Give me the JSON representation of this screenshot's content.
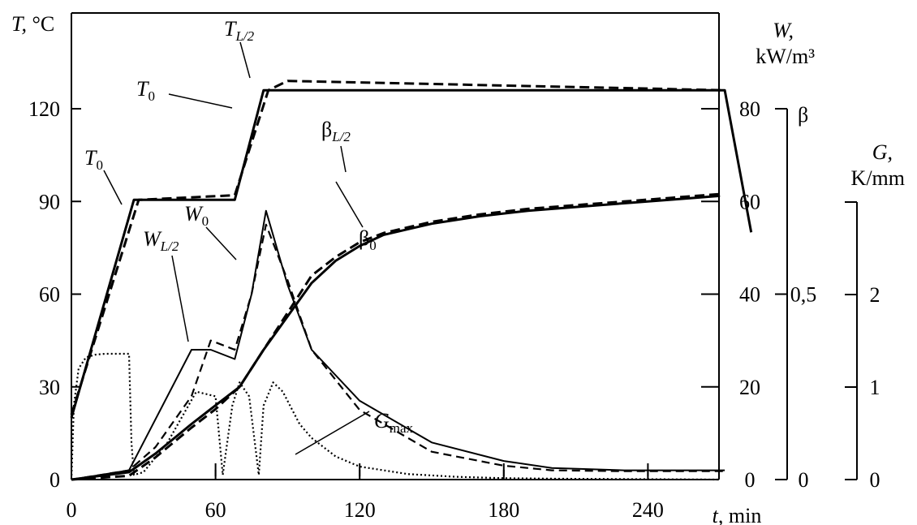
{
  "chart_data": {
    "type": "line",
    "grid": false,
    "x_axis": {
      "label_var": "t,",
      "label_unit": " min",
      "range": [
        0,
        270
      ],
      "ticks": [
        0,
        60,
        120,
        180,
        240
      ]
    },
    "left_axis": {
      "label_var": "T,",
      "label_unit": " °C",
      "range": [
        0,
        150
      ],
      "ticks": [
        0,
        30,
        60,
        90,
        120
      ]
    },
    "w_axis": {
      "label_var": "W,",
      "label_unit": "kW/m³",
      "range": [
        0,
        100
      ],
      "ticks": [
        0,
        20,
        40,
        60,
        80
      ]
    },
    "beta_axis": {
      "label": "β",
      "range": [
        0,
        1
      ],
      "ticks": [
        {
          "value": 0,
          "label": "0"
        },
        {
          "value": 0.5,
          "label": "0,5"
        }
      ]
    },
    "g_axis": {
      "label_var": "G,",
      "label_unit": "K/mm",
      "range": [
        0,
        3
      ],
      "ticks": [
        0,
        1,
        2
      ]
    },
    "series": [
      {
        "id": "T0",
        "axis": "T",
        "style": "solid-thick",
        "x": [
          0,
          26,
          68,
          80,
          272,
          283
        ],
        "y": [
          20,
          90.5,
          90.5,
          126,
          126,
          80
        ]
      },
      {
        "id": "TL2",
        "axis": "T",
        "style": "dashed-thick",
        "x": [
          0,
          28,
          68,
          82,
          90,
          272
        ],
        "y": [
          21,
          90.5,
          92,
          126,
          129,
          126
        ]
      },
      {
        "id": "W0",
        "axis": "W",
        "style": "solid-thin",
        "x": [
          0,
          24,
          50,
          58,
          68,
          75,
          81,
          90,
          100,
          120,
          150,
          180,
          200,
          230,
          272
        ],
        "y": [
          0,
          2,
          28,
          28,
          26,
          40,
          58,
          42,
          28,
          17,
          8,
          4,
          2.5,
          2,
          2
        ]
      },
      {
        "id": "WL2",
        "axis": "W",
        "style": "dashed-thin",
        "x": [
          0,
          24,
          35,
          50,
          58,
          68,
          75,
          81,
          90,
          100,
          120,
          150,
          180,
          200,
          230,
          272
        ],
        "y": [
          0,
          2,
          7,
          18,
          30,
          28,
          40,
          55,
          43,
          28,
          15,
          6,
          3,
          2,
          1.8,
          1.8
        ]
      },
      {
        "id": "beta0",
        "axis": "beta",
        "style": "solid-thick",
        "x": [
          0,
          24,
          35,
          50,
          60,
          70,
          80,
          90,
          100,
          110,
          120,
          130,
          150,
          170,
          190,
          210,
          230,
          250,
          270
        ],
        "y": [
          0,
          0.02,
          0.07,
          0.15,
          0.2,
          0.25,
          0.35,
          0.44,
          0.53,
          0.59,
          0.63,
          0.66,
          0.69,
          0.71,
          0.725,
          0.735,
          0.745,
          0.755,
          0.765
        ]
      },
      {
        "id": "betaL2",
        "axis": "beta",
        "style": "dashed-thick",
        "x": [
          0,
          24,
          35,
          50,
          60,
          70,
          80,
          90,
          100,
          110,
          120,
          130,
          150,
          170,
          190,
          210,
          230,
          250,
          270
        ],
        "y": [
          0,
          0.01,
          0.06,
          0.14,
          0.19,
          0.25,
          0.35,
          0.45,
          0.55,
          0.6,
          0.64,
          0.665,
          0.695,
          0.715,
          0.73,
          0.74,
          0.75,
          0.76,
          0.77
        ]
      },
      {
        "id": "Gmax",
        "axis": "G",
        "style": "dotted",
        "x": [
          0,
          1,
          3,
          6,
          10,
          14,
          20,
          24,
          25,
          26,
          30,
          40,
          52,
          60,
          63,
          67,
          70,
          74,
          78,
          80,
          84,
          88,
          92,
          95,
          100,
          110,
          120,
          140,
          160,
          180,
          200,
          230,
          270
        ],
        "y": [
          0,
          0.8,
          1.2,
          1.32,
          1.35,
          1.36,
          1.36,
          1.36,
          0.4,
          0.05,
          0.08,
          0.4,
          0.95,
          0.9,
          0.05,
          0.8,
          1.05,
          0.9,
          0.05,
          0.8,
          1.05,
          0.95,
          0.75,
          0.6,
          0.45,
          0.25,
          0.14,
          0.06,
          0.03,
          0.015,
          0.01,
          0.005,
          0
        ]
      }
    ],
    "labels": [
      {
        "id": "T0_top",
        "main": "T",
        "sub": "0"
      },
      {
        "id": "T0_left",
        "main": "T",
        "sub": "0"
      },
      {
        "id": "TL2",
        "main": "T",
        "sub": "L/2"
      },
      {
        "id": "W0",
        "main": "W",
        "sub": "0"
      },
      {
        "id": "WL2",
        "main": "W",
        "sub": "L/2"
      },
      {
        "id": "betaL2",
        "main": "β",
        "sub": "L/2"
      },
      {
        "id": "beta0",
        "main": "β",
        "sub": "0"
      },
      {
        "id": "Gmax",
        "main": "G",
        "sub": "max"
      }
    ]
  }
}
